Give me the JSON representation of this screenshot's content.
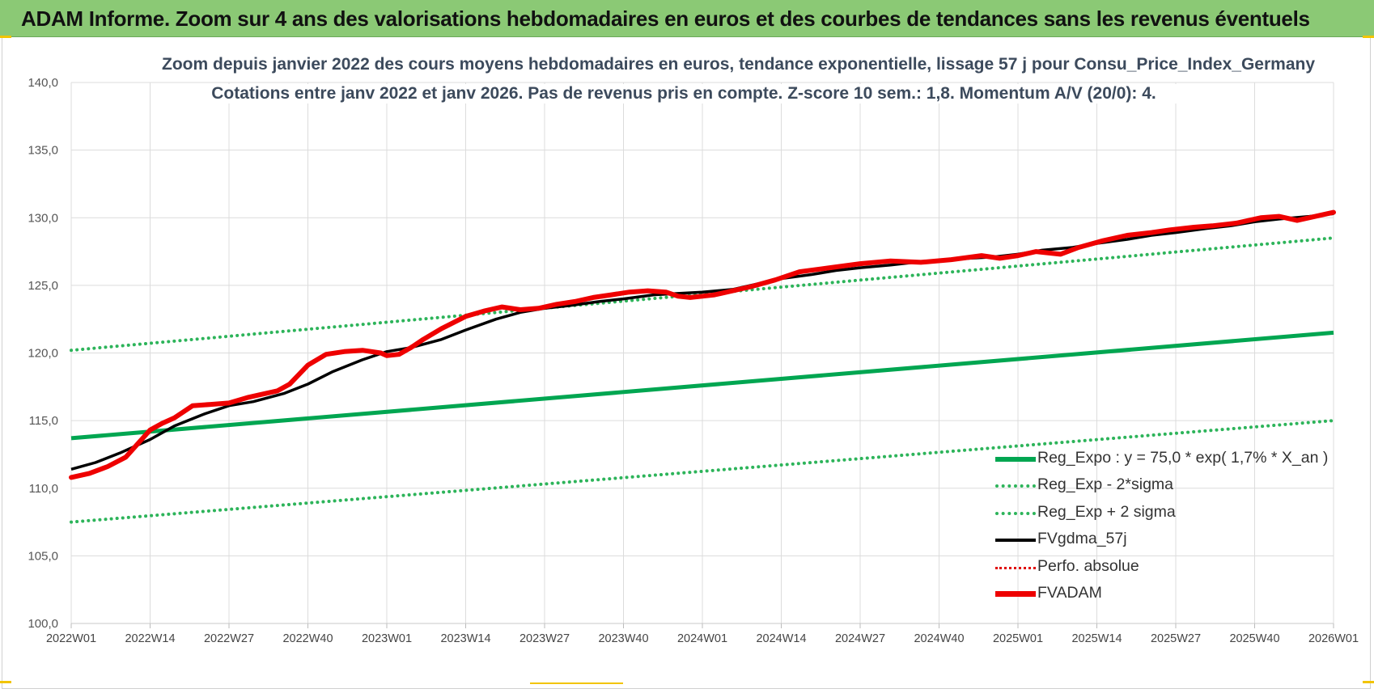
{
  "banner": {
    "title": "ADAM Informe. Zoom sur 4 ans des valorisations hebdomadaires en euros et des courbes de tendances sans les revenus éventuels"
  },
  "colors": {
    "banner_bg": "#8bc975",
    "reg_expo": "#00a651",
    "sigma": "#2db45a",
    "fvgdma": "#000000",
    "perfo": "#e00000",
    "fvadam": "#ee0000",
    "grid": "#dcdcdc"
  },
  "chart_data": {
    "type": "line",
    "title": "Zoom depuis janvier 2022 des cours moyens hebdomadaires en euros, tendance exponentielle, lissage 57 j pour Consu_Price_Index_Germany",
    "subtitle": "Cotations entre janv 2022 et janv 2026. Pas de revenus pris en compte. Z-score 10 sem.: 1,8. Momentum A/V (20/0): 4.",
    "xlabel": "",
    "ylabel": "",
    "ylim": [
      100,
      140
    ],
    "yticks": [
      "100,0",
      "105,0",
      "110,0",
      "115,0",
      "120,0",
      "125,0",
      "130,0",
      "135,0",
      "140,0"
    ],
    "xlim": [
      0,
      208
    ],
    "x_unit": "weeks since 2022W01",
    "categories": [
      "2022W01",
      "2022W14",
      "2022W27",
      "2022W40",
      "2023W01",
      "2023W14",
      "2023W27",
      "2023W40",
      "2024W01",
      "2024W14",
      "2024W27",
      "2024W40",
      "2025W01",
      "2025W14",
      "2025W27",
      "2025W40",
      "2026W01"
    ],
    "grid": true,
    "legend_position": "bottom-right",
    "series": [
      {
        "name": "Reg_Expo : y = 75,0 * exp( 1,7% *  X_an )",
        "style": "solid-thick",
        "x": [
          0,
          208
        ],
        "values": [
          113.7,
          121.5
        ]
      },
      {
        "name": "Reg_Exp - 2*sigma",
        "style": "dotted",
        "x": [
          0,
          208
        ],
        "values": [
          107.5,
          115.0
        ]
      },
      {
        "name": "Reg_Exp + 2 sigma",
        "style": "dotted",
        "x": [
          0,
          208
        ],
        "values": [
          120.2,
          128.5
        ]
      },
      {
        "name": "FVgdma_57j",
        "style": "solid",
        "x": [
          0,
          4,
          8,
          13,
          17,
          22,
          26,
          30,
          35,
          39,
          43,
          48,
          52,
          56,
          61,
          65,
          70,
          74,
          78,
          82,
          87,
          91,
          96,
          100,
          104,
          109,
          113,
          117,
          122,
          126,
          130,
          135,
          139,
          143,
          148,
          152,
          156,
          160,
          165,
          169,
          174,
          178,
          182,
          187,
          191,
          195,
          199,
          204,
          208
        ],
        "values": [
          111.4,
          111.9,
          112.6,
          113.6,
          114.6,
          115.5,
          116.1,
          116.4,
          117.0,
          117.7,
          118.6,
          119.5,
          120.1,
          120.4,
          121.0,
          121.7,
          122.5,
          123.0,
          123.3,
          123.5,
          123.8,
          124.0,
          124.3,
          124.4,
          124.5,
          124.7,
          125.1,
          125.5,
          125.8,
          126.1,
          126.3,
          126.5,
          126.7,
          126.8,
          127.0,
          127.1,
          127.3,
          127.6,
          127.8,
          128.1,
          128.4,
          128.7,
          128.9,
          129.2,
          129.4,
          129.7,
          129.9,
          130.1,
          130.3
        ]
      },
      {
        "name": "Perfo. absolue",
        "style": "dotted-thin",
        "x": [],
        "values": []
      },
      {
        "name": "FVADAM",
        "style": "solid-thick",
        "x": [
          0,
          3,
          6,
          9,
          13,
          15,
          17,
          20,
          23,
          26,
          29,
          31,
          34,
          36,
          39,
          42,
          45,
          48,
          51,
          52,
          54,
          56,
          58,
          61,
          65,
          68,
          71,
          74,
          77,
          80,
          83,
          86,
          89,
          92,
          95,
          98,
          100,
          102,
          104,
          106,
          109,
          112,
          116,
          120,
          125,
          130,
          135,
          140,
          145,
          150,
          153,
          156,
          159,
          163,
          166,
          170,
          174,
          178,
          181,
          185,
          188,
          192,
          196,
          199,
          202,
          205,
          208
        ],
        "values": [
          110.8,
          111.1,
          111.6,
          112.3,
          114.3,
          114.8,
          115.2,
          116.1,
          116.2,
          116.3,
          116.7,
          116.9,
          117.2,
          117.7,
          119.1,
          119.9,
          120.1,
          120.2,
          120.0,
          119.8,
          119.9,
          120.4,
          121.0,
          121.8,
          122.7,
          123.1,
          123.4,
          123.2,
          123.3,
          123.6,
          123.8,
          124.1,
          124.3,
          124.5,
          124.6,
          124.5,
          124.2,
          124.1,
          124.2,
          124.3,
          124.6,
          124.9,
          125.4,
          126.0,
          126.3,
          126.6,
          126.8,
          126.7,
          126.9,
          127.2,
          127.0,
          127.2,
          127.5,
          127.3,
          127.8,
          128.3,
          128.7,
          128.9,
          129.1,
          129.3,
          129.4,
          129.6,
          130.0,
          130.1,
          129.8,
          130.1,
          130.4
        ]
      }
    ]
  }
}
